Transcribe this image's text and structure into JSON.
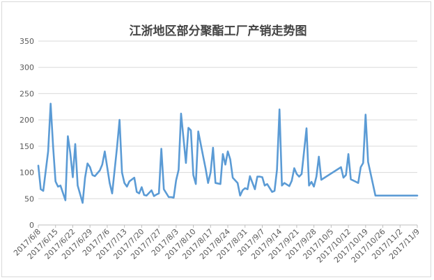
{
  "chart_data": {
    "type": "line",
    "title": "江浙地区部分聚酯工厂产销走势图",
    "xlabel": "",
    "ylabel": "",
    "ylim": [
      0,
      350
    ],
    "yticks": [
      0,
      50,
      100,
      150,
      200,
      250,
      300,
      350
    ],
    "grid": "horizontal",
    "legend": "none",
    "colors": {
      "line": "#5b9bd5",
      "grid": "#d9d9d9",
      "axis": "#bfbfbf",
      "text": "#595959"
    },
    "x_tick_labels": [
      "2017/6/8",
      "2017/6/15",
      "2017/6/22",
      "2017/6/29",
      "2017/7/6",
      "2017/7/13",
      "2017/7/20",
      "2017/7/27",
      "2017/8/3",
      "2017/8/10",
      "2017/8/17",
      "2017/8/24",
      "2017/8/31",
      "2017/9/7",
      "2017/9/14",
      "2017/9/21",
      "2017/9/28",
      "2017/10/5",
      "2017/10/12",
      "2017/10/19",
      "2017/10/26",
      "2017/11/2",
      "2017/11/9"
    ],
    "x_start": "2017/6/8",
    "x_end": "2017/11/9",
    "series": [
      {
        "x": [
          "2017/6/8",
          "2017/6/9",
          "2017/6/10",
          "2017/6/12",
          "2017/6/13",
          "2017/6/14",
          "2017/6/15",
          "2017/6/16",
          "2017/6/17",
          "2017/6/19",
          "2017/6/20",
          "2017/6/21",
          "2017/6/22",
          "2017/6/23",
          "2017/6/24",
          "2017/6/26",
          "2017/6/27",
          "2017/6/28",
          "2017/6/29",
          "2017/6/30",
          "2017/7/1",
          "2017/7/3",
          "2017/7/4",
          "2017/7/5",
          "2017/7/6",
          "2017/7/7",
          "2017/7/8",
          "2017/7/10",
          "2017/7/11",
          "2017/7/12",
          "2017/7/13",
          "2017/7/14",
          "2017/7/15",
          "2017/7/17",
          "2017/7/18",
          "2017/7/19",
          "2017/7/20",
          "2017/7/21",
          "2017/7/22",
          "2017/7/24",
          "2017/7/25",
          "2017/7/26",
          "2017/7/27",
          "2017/7/28",
          "2017/7/29",
          "2017/7/31",
          "2017/8/1",
          "2017/8/2",
          "2017/8/3",
          "2017/8/4",
          "2017/8/5",
          "2017/8/7",
          "2017/8/8",
          "2017/8/9",
          "2017/8/10",
          "2017/8/11",
          "2017/8/12",
          "2017/8/14",
          "2017/8/15",
          "2017/8/16",
          "2017/8/17",
          "2017/8/18",
          "2017/8/19",
          "2017/8/21",
          "2017/8/22",
          "2017/8/23",
          "2017/8/24",
          "2017/8/25",
          "2017/8/26",
          "2017/8/28",
          "2017/8/29",
          "2017/8/30",
          "2017/8/31",
          "2017/9/1",
          "2017/9/2",
          "2017/9/4",
          "2017/9/5",
          "2017/9/6",
          "2017/9/7",
          "2017/9/8",
          "2017/9/9",
          "2017/9/11",
          "2017/9/12",
          "2017/9/13",
          "2017/9/14",
          "2017/9/15",
          "2017/9/16",
          "2017/9/18",
          "2017/9/19",
          "2017/9/20",
          "2017/9/21",
          "2017/9/22",
          "2017/9/23",
          "2017/9/25",
          "2017/9/26",
          "2017/9/27",
          "2017/9/28",
          "2017/9/29",
          "2017/9/30",
          "2017/10/1",
          "2017/10/9",
          "2017/10/10",
          "2017/10/11",
          "2017/10/12",
          "2017/10/13",
          "2017/10/16",
          "2017/10/17",
          "2017/10/18",
          "2017/10/19",
          "2017/10/20",
          "2017/10/23",
          "2017/10/24",
          "2017/10/25",
          "2017/10/26",
          "2017/10/27",
          "2017/10/30",
          "2017/10/31",
          "2017/11/1",
          "2017/11/2",
          "2017/11/3",
          "2017/11/6",
          "2017/11/7",
          "2017/11/8",
          "2017/11/9"
        ],
        "y": [
          113,
          68,
          65,
          140,
          231,
          150,
          83,
          73,
          75,
          47,
          169,
          137,
          91,
          154,
          75,
          42,
          90,
          117,
          110,
          95,
          93,
          104,
          115,
          140,
          110,
          80,
          60,
          148,
          200,
          100,
          80,
          73,
          83,
          90,
          63,
          60,
          72,
          57,
          56,
          66,
          55,
          58,
          60,
          145,
          68,
          53,
          53,
          52,
          85,
          105,
          212,
          118,
          185,
          180,
          95,
          78,
          178,
          130,
          107,
          80,
          100,
          147,
          80,
          78,
          135,
          115,
          140,
          125,
          90,
          80,
          56,
          66,
          70,
          68,
          93,
          68,
          92,
          92,
          91,
          75,
          78,
          63,
          65,
          105,
          220,
          75,
          80,
          74,
          84,
          108,
          97,
          92,
          97,
          184,
          75,
          82,
          73,
          92,
          130,
          86,
          110,
          90,
          95,
          135,
          87,
          80,
          110,
          118,
          210,
          120,
          56,
          56,
          56,
          56,
          56,
          56,
          56,
          56,
          56,
          56,
          56,
          56,
          56,
          56
        ]
      }
    ]
  }
}
